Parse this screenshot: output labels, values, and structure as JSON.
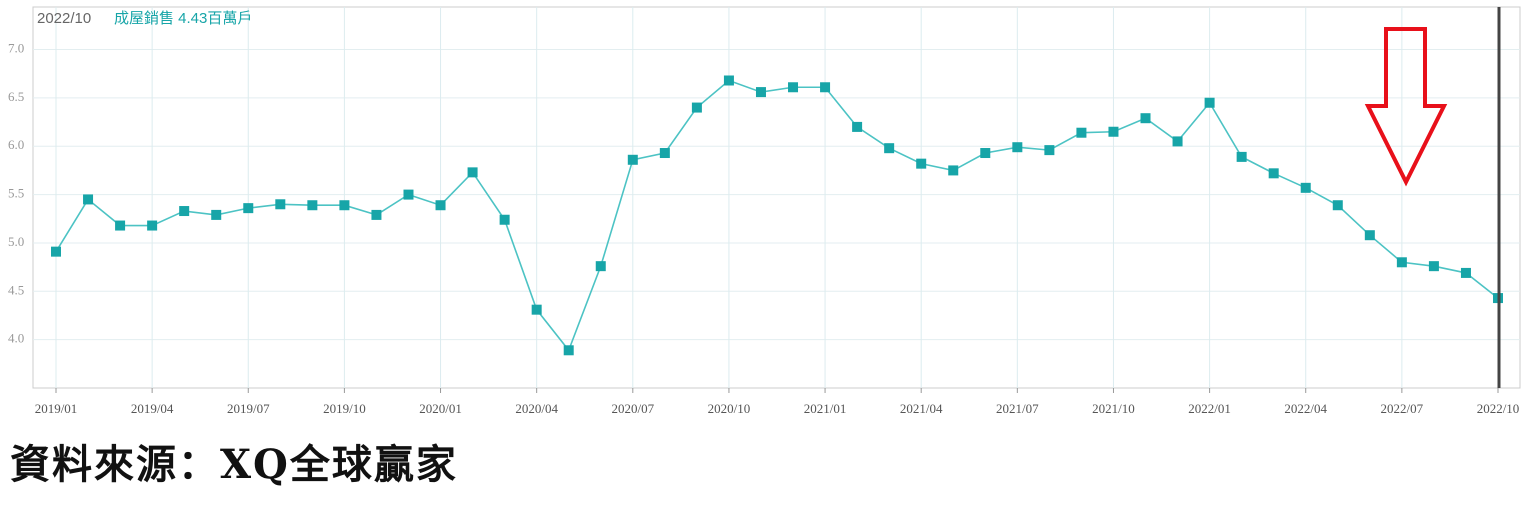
{
  "chart_data": {
    "type": "line",
    "annotation": {
      "date": "2022/10",
      "text": "成屋銷售 4.43百萬戶"
    },
    "categories": [
      "2019/01",
      null,
      null,
      "2019/04",
      null,
      null,
      "2019/07",
      null,
      null,
      "2019/10",
      null,
      null,
      "2020/01",
      null,
      null,
      "2020/04",
      null,
      null,
      "2020/07",
      null,
      null,
      "2020/10",
      null,
      null,
      "2021/01",
      null,
      null,
      "2021/04",
      null,
      null,
      "2021/07",
      null,
      null,
      "2021/10",
      null,
      null,
      "2022/01",
      null,
      null,
      "2022/04",
      null,
      null,
      "2022/07",
      null,
      null,
      "2022/10"
    ],
    "series": [
      {
        "color": "#17a5a8",
        "values": [
          4.91,
          5.45,
          5.18,
          5.18,
          5.33,
          5.29,
          5.36,
          5.4,
          5.39,
          5.39,
          5.29,
          5.5,
          5.39,
          5.73,
          5.24,
          4.31,
          3.89,
          4.76,
          5.86,
          5.93,
          6.4,
          6.68,
          6.56,
          6.61,
          6.61,
          6.2,
          5.98,
          5.82,
          5.75,
          5.93,
          5.99,
          5.96,
          6.14,
          6.15,
          6.29,
          6.05,
          6.45,
          5.89,
          5.72,
          5.57,
          5.39,
          5.08,
          4.8,
          4.76,
          4.69,
          4.43
        ]
      }
    ],
    "ylim": [
      3.5,
      7.44
    ],
    "yticks": [
      {
        "value": 4,
        "label": "4.0"
      },
      4.5,
      {
        "value": 5,
        "label": "5.0"
      },
      5.5,
      {
        "value": 6,
        "label": "6.0"
      },
      6.5,
      {
        "value": 7,
        "label": "7.0"
      }
    ],
    "grid": true
  },
  "source": "資料來源：XQ全球贏家"
}
